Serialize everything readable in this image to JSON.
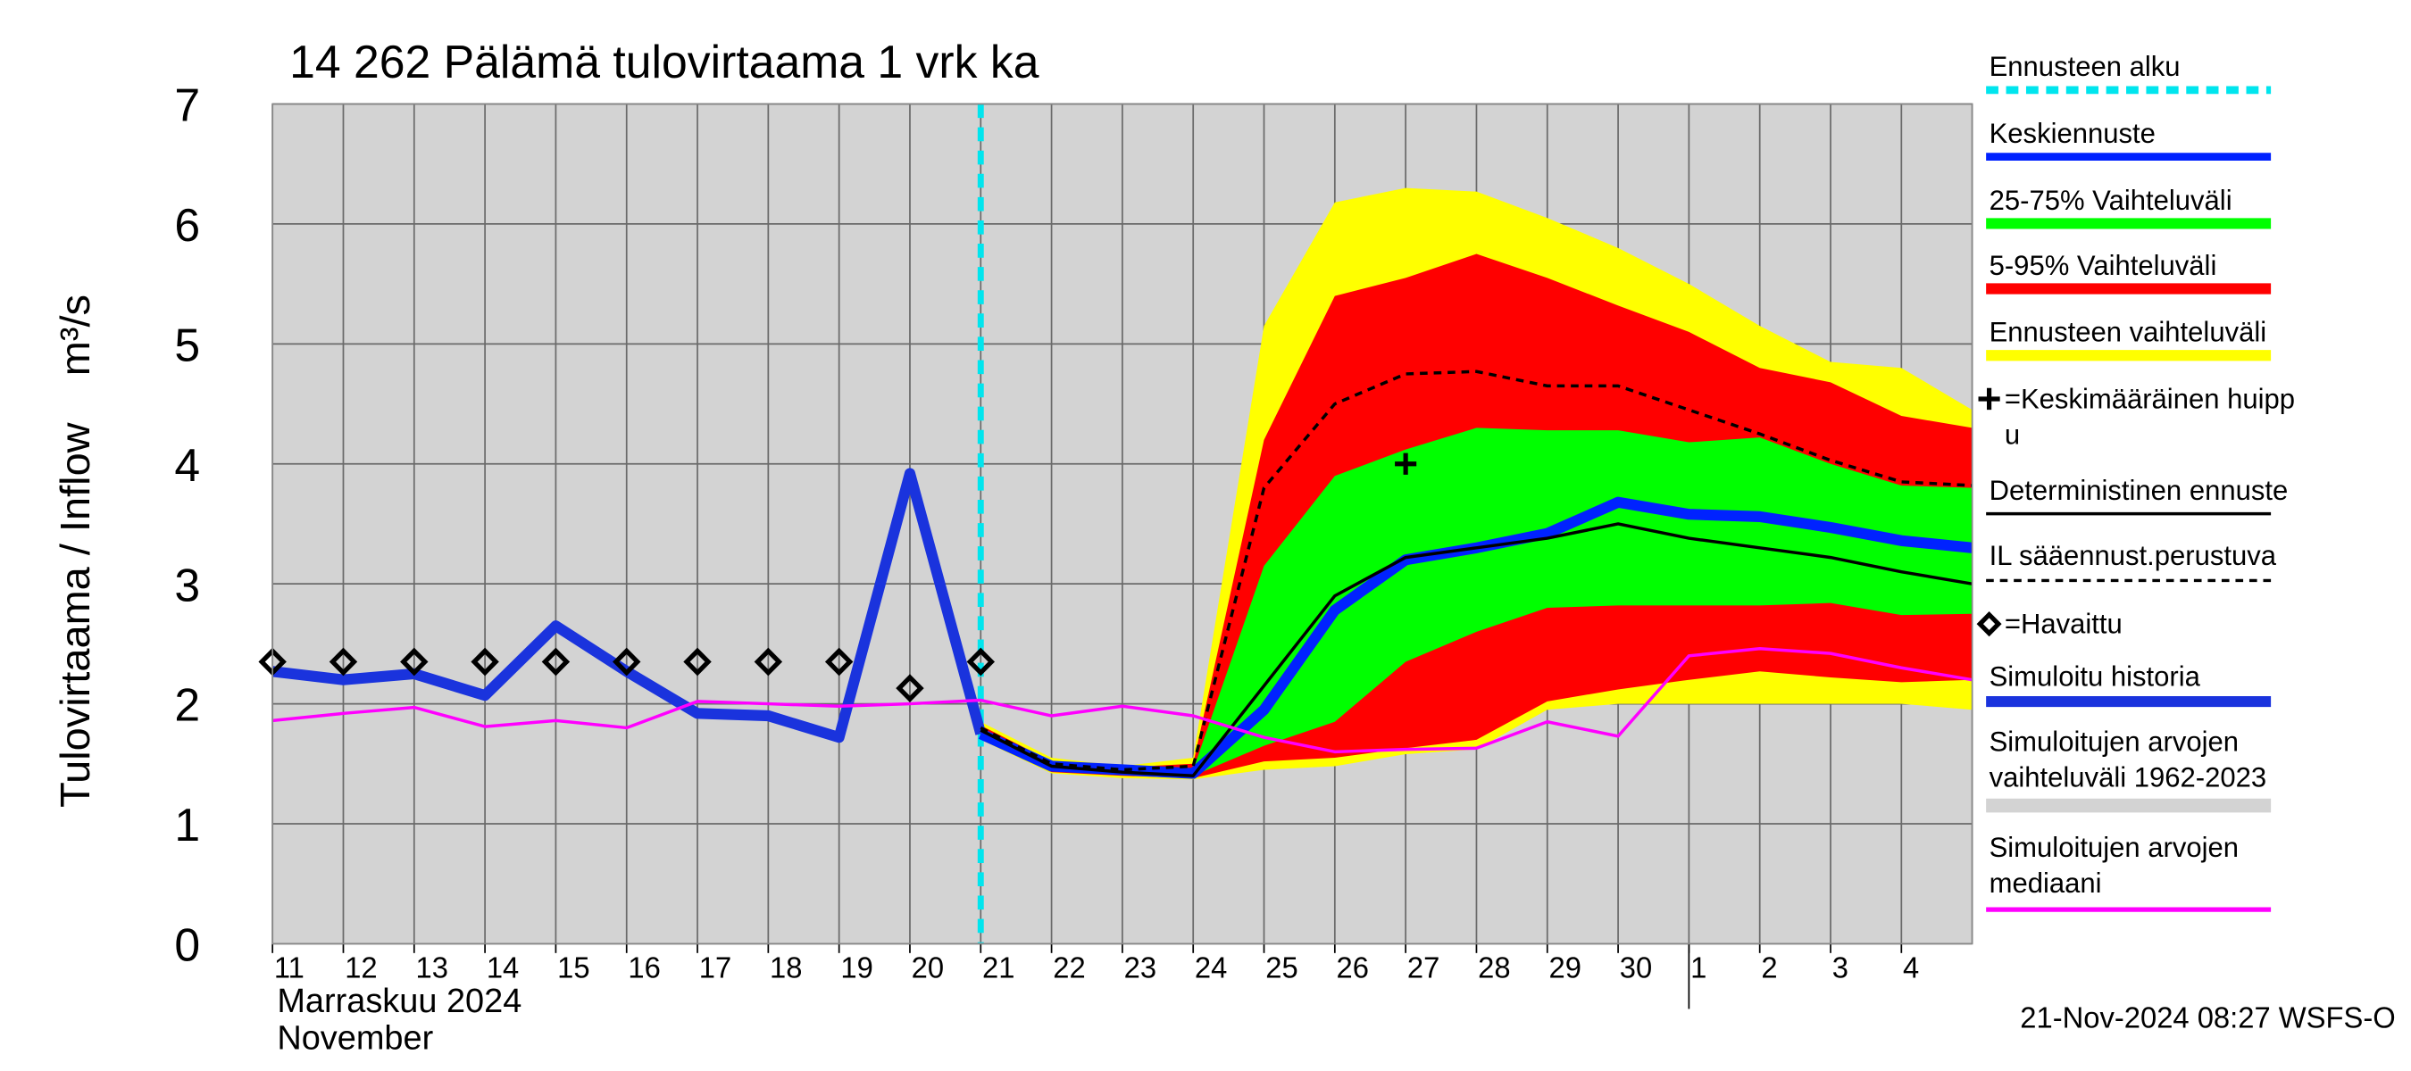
{
  "chart_data": {
    "type": "line",
    "title": "14 262 Pälämä tulovirtaama 1 vrk ka",
    "y_label": "Tulovirtaama / Inflow    m³/s",
    "month_label": "Marraskuu 2024",
    "month_label_en": "November",
    "footer": "21-Nov-2024 08:27 WSFS-O",
    "categories": [
      "11",
      "12",
      "13",
      "14",
      "15",
      "16",
      "17",
      "18",
      "19",
      "20",
      "21",
      "22",
      "23",
      "24",
      "25",
      "26",
      "27",
      "28",
      "29",
      "30",
      "1",
      "2",
      "3",
      "4",
      null
    ],
    "ylim": [
      0,
      7
    ],
    "yticks": [
      0,
      1,
      2,
      3,
      4,
      5,
      6,
      7
    ],
    "grid": true,
    "forecast_start": {
      "name": "Ennusteen alku",
      "color": "#00e5ee"
    },
    "sim_range": {
      "name": "Simuloitujen arvojen\nvaihteluväli 1962-2023",
      "color": "#d3d3d3"
    },
    "peak": {
      "name": "=Keskimääräinen huipp\nu",
      "x": "27",
      "value": 4.0,
      "color": "#000000"
    },
    "bands": [
      {
        "name": "25-75% Vaihteluväli",
        "color": "#00ff00",
        "lower": [
          null,
          null,
          null,
          null,
          null,
          null,
          null,
          null,
          null,
          null,
          1.75,
          1.45,
          1.42,
          1.4,
          1.65,
          1.85,
          2.35,
          2.6,
          2.8,
          2.82,
          2.82,
          2.82,
          2.84,
          2.74,
          2.75
        ],
        "upper": [
          null,
          null,
          null,
          null,
          null,
          null,
          null,
          null,
          null,
          null,
          1.8,
          1.5,
          1.45,
          1.45,
          3.15,
          3.9,
          4.12,
          4.3,
          4.28,
          4.28,
          4.18,
          4.22,
          4.0,
          3.82,
          3.8
        ]
      },
      {
        "name": "5-95% Vaihteluväli",
        "color": "#ff0000",
        "lower": [
          null,
          null,
          null,
          null,
          null,
          null,
          null,
          null,
          null,
          null,
          1.72,
          1.43,
          1.4,
          1.38,
          1.52,
          1.55,
          1.63,
          1.7,
          2.02,
          2.12,
          2.2,
          2.27,
          2.22,
          2.18,
          2.2
        ],
        "upper": [
          null,
          null,
          null,
          null,
          null,
          null,
          null,
          null,
          null,
          null,
          1.82,
          1.52,
          1.47,
          1.5,
          4.2,
          5.4,
          5.55,
          5.75,
          5.55,
          5.32,
          5.1,
          4.8,
          4.68,
          4.4,
          4.3
        ]
      },
      {
        "name": "Ennusteen vaihteluväli",
        "color": "#ffff00",
        "lower": [
          null,
          null,
          null,
          null,
          null,
          null,
          null,
          null,
          null,
          null,
          1.7,
          1.42,
          1.38,
          1.37,
          1.45,
          1.48,
          1.58,
          1.62,
          1.95,
          2.0,
          2.0,
          2.0,
          2.0,
          2.0,
          1.95
        ],
        "upper": [
          null,
          null,
          null,
          null,
          null,
          null,
          null,
          null,
          null,
          null,
          1.85,
          1.55,
          1.48,
          1.55,
          5.15,
          6.18,
          6.3,
          6.27,
          6.05,
          5.8,
          5.5,
          5.15,
          4.85,
          4.8,
          4.45
        ]
      }
    ],
    "series": [
      {
        "name": "Simuloitu historia",
        "color": "#1a33dd",
        "width": 7,
        "values": [
          2.27,
          2.2,
          2.25,
          2.07,
          2.65,
          2.27,
          1.92,
          1.9,
          1.72,
          3.92,
          1.75,
          null,
          null,
          null,
          null,
          null,
          null,
          null,
          null,
          null,
          null,
          null,
          null,
          null,
          null
        ]
      },
      {
        "name": "Keskiennuste",
        "color": "#0022ff",
        "width": 7,
        "values": [
          null,
          null,
          null,
          null,
          null,
          null,
          null,
          null,
          null,
          null,
          1.75,
          1.48,
          1.45,
          1.42,
          1.95,
          2.78,
          3.2,
          3.3,
          3.42,
          3.68,
          3.58,
          3.56,
          3.47,
          3.36,
          3.3
        ]
      },
      {
        "name": "Deterministinen ennuste",
        "color": "#000000",
        "width": 2,
        "values": [
          null,
          null,
          null,
          null,
          null,
          null,
          null,
          null,
          null,
          null,
          1.78,
          1.48,
          1.43,
          1.4,
          2.15,
          2.9,
          3.22,
          3.3,
          3.38,
          3.5,
          3.38,
          3.3,
          3.22,
          3.1,
          3.0
        ]
      },
      {
        "name": "IL sääennust.perustuva",
        "color": "#000000",
        "width": 2,
        "dash": true,
        "values": [
          null,
          null,
          null,
          null,
          null,
          null,
          null,
          null,
          null,
          null,
          1.8,
          1.5,
          1.45,
          1.48,
          3.8,
          4.5,
          4.75,
          4.77,
          4.65,
          4.65,
          4.45,
          4.25,
          4.03,
          3.85,
          3.82
        ]
      },
      {
        "name": "=Havaittu",
        "color": "#000000",
        "marker": "diamond",
        "values": [
          2.35,
          2.35,
          2.35,
          2.35,
          2.35,
          2.35,
          2.35,
          2.35,
          2.35,
          2.13,
          2.35,
          null,
          null,
          null,
          null,
          null,
          null,
          null,
          null,
          null,
          null,
          null,
          null,
          null,
          null
        ]
      },
      {
        "name": "Simuloitujen arvojen\nmediaani",
        "color": "#ff00ff",
        "width": 2,
        "values": [
          1.86,
          1.92,
          1.97,
          1.81,
          1.86,
          1.8,
          2.02,
          2.0,
          1.98,
          2.0,
          2.03,
          1.9,
          1.98,
          1.9,
          1.72,
          1.6,
          1.62,
          1.63,
          1.85,
          1.73,
          2.4,
          2.46,
          2.42,
          2.3,
          2.2
        ]
      }
    ]
  }
}
